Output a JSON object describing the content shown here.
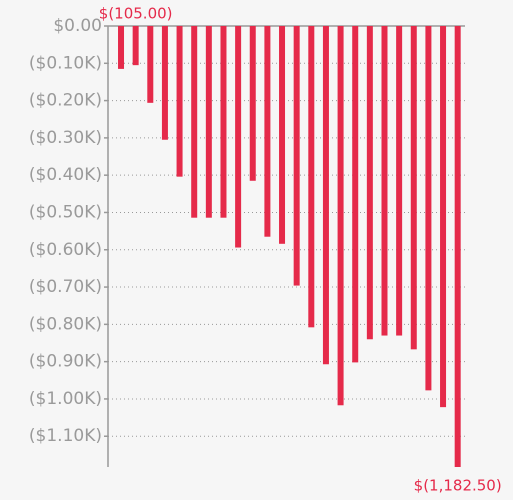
{
  "chart_data": {
    "type": "bar",
    "categories": [
      null,
      null,
      null,
      null,
      null,
      null,
      null,
      null,
      null,
      null,
      null,
      null,
      null,
      null,
      null,
      null,
      null,
      null,
      null,
      null,
      null,
      null,
      null,
      null
    ],
    "values": [
      -115,
      -105,
      -206,
      -305,
      -404,
      -514,
      -514,
      -514,
      -594,
      -415,
      -565,
      -584,
      -696,
      -808,
      -907,
      -1017,
      -902,
      -840,
      -830,
      -830,
      -867,
      -977,
      -1022,
      -1182.5
    ],
    "value_labels": [
      null,
      "$(105.00)",
      null,
      null,
      null,
      null,
      null,
      null,
      null,
      null,
      null,
      null,
      null,
      null,
      null,
      null,
      null,
      null,
      null,
      null,
      null,
      null,
      null,
      "$(1,182.50)"
    ],
    "color": "#e52a4a",
    "ylim": [
      -1182.5,
      0
    ],
    "yticks": [
      {
        "value": 0,
        "label": "$0.00"
      },
      {
        "value": -100,
        "label": "($0.10K)"
      },
      {
        "value": -200,
        "label": "($0.20K)"
      },
      {
        "value": -300,
        "label": "($0.30K)"
      },
      {
        "value": -400,
        "label": "($0.40K)"
      },
      {
        "value": -500,
        "label": "($0.50K)"
      },
      {
        "value": -600,
        "label": "($0.60K)"
      },
      {
        "value": -700,
        "label": "($0.70K)"
      },
      {
        "value": -800,
        "label": "($0.80K)"
      },
      {
        "value": -900,
        "label": "($0.90K)"
      },
      {
        "value": -1000,
        "label": "($1.00K)"
      },
      {
        "value": -1100,
        "label": "($1.10K)"
      }
    ],
    "grid": true
  }
}
